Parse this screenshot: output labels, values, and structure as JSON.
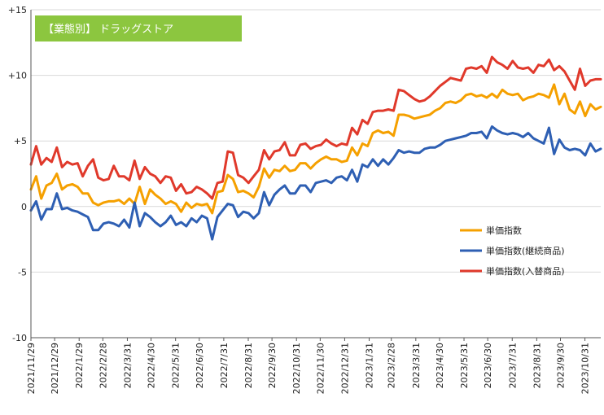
{
  "chart_data": {
    "type": "line",
    "title": "【業態別】 ドラッグストア",
    "title_bg_color": "#8cc63f",
    "xlabel": "",
    "ylabel": "",
    "ylim": [
      -10,
      15
    ],
    "yticks": [
      -10,
      -5,
      0,
      5,
      10,
      15
    ],
    "ytick_labels": [
      "-10",
      "-5",
      "0",
      "+5",
      "+10",
      "+15"
    ],
    "grid": true,
    "legend_position": "right-middle",
    "x_start": "2021-11-29",
    "x_end": "2023-11-20",
    "x_tick_labels": [
      "2021/11/29",
      "2021/12/29",
      "2022/1/29",
      "2022/2/28",
      "2022/3/31",
      "2022/4/30",
      "2022/5/31",
      "2022/6/30",
      "2022/7/31",
      "2022/8/31",
      "2022/9/30",
      "2022/10/31",
      "2022/11/30",
      "2022/12/31",
      "2023/1/31",
      "2023/2/28",
      "2023/3/31",
      "2023/4/30",
      "2023/5/31",
      "2023/6/30",
      "2023/7/31",
      "2023/8/31",
      "2023/9/30",
      "2023/10/31"
    ],
    "series": [
      {
        "name": "単価指数",
        "color": "#f5a000",
        "values": [
          1.3,
          2.3,
          0.6,
          1.6,
          1.8,
          2.5,
          1.3,
          1.6,
          1.7,
          1.5,
          1.0,
          1.0,
          0.3,
          0.1,
          0.3,
          0.4,
          0.4,
          0.5,
          0.2,
          0.6,
          0.2,
          1.5,
          0.2,
          1.3,
          0.9,
          0.6,
          0.2,
          0.4,
          0.2,
          -0.4,
          0.3,
          -0.1,
          0.2,
          0.1,
          0.2,
          -0.5,
          1.1,
          1.2,
          2.4,
          2.1,
          1.1,
          1.2,
          1.0,
          0.7,
          1.5,
          2.9,
          2.2,
          2.8,
          2.7,
          3.1,
          2.7,
          2.8,
          3.3,
          3.3,
          2.9,
          3.3,
          3.6,
          3.8,
          3.6,
          3.6,
          3.4,
          3.5,
          4.5,
          3.9,
          4.8,
          4.6,
          5.6,
          5.8,
          5.6,
          5.7,
          5.4,
          7.0,
          7.0,
          6.9,
          6.7,
          6.8,
          6.9,
          7.0,
          7.3,
          7.5,
          7.9,
          8.0,
          7.9,
          8.1,
          8.5,
          8.6,
          8.4,
          8.5,
          8.3,
          8.6,
          8.3,
          8.9,
          8.6,
          8.5,
          8.6,
          8.1,
          8.3,
          8.4,
          8.6,
          8.5,
          8.3,
          9.3,
          7.8,
          8.6,
          7.4,
          7.1,
          8.0,
          6.9,
          7.8,
          7.4,
          7.6
        ]
      },
      {
        "name": "単価指数(継続商品)",
        "color": "#2e5fb3",
        "values": [
          -0.3,
          0.4,
          -1.0,
          -0.2,
          -0.2,
          1.0,
          -0.2,
          -0.1,
          -0.3,
          -0.4,
          -0.6,
          -0.8,
          -1.8,
          -1.8,
          -1.3,
          -1.2,
          -1.3,
          -1.5,
          -1.0,
          -1.6,
          0.3,
          -1.5,
          -0.5,
          -0.8,
          -1.2,
          -1.5,
          -1.2,
          -0.7,
          -1.4,
          -1.2,
          -1.5,
          -0.9,
          -1.2,
          -0.7,
          -0.9,
          -2.5,
          -0.8,
          -0.3,
          0.2,
          0.1,
          -0.8,
          -0.4,
          -0.5,
          -0.9,
          -0.5,
          1.1,
          0.1,
          0.9,
          1.3,
          1.6,
          1.0,
          1.0,
          1.6,
          1.6,
          1.1,
          1.8,
          1.9,
          2.0,
          1.8,
          2.2,
          2.3,
          2.0,
          2.8,
          1.9,
          3.2,
          3.0,
          3.6,
          3.1,
          3.6,
          3.2,
          3.7,
          4.3,
          4.1,
          4.2,
          4.1,
          4.1,
          4.4,
          4.5,
          4.5,
          4.7,
          5.0,
          5.1,
          5.2,
          5.3,
          5.4,
          5.6,
          5.6,
          5.7,
          5.2,
          6.1,
          5.8,
          5.6,
          5.5,
          5.6,
          5.5,
          5.3,
          5.6,
          5.2,
          5.0,
          4.8,
          6.0,
          4.0,
          5.1,
          4.5,
          4.3,
          4.4,
          4.3,
          3.9,
          4.8,
          4.2,
          4.4
        ]
      },
      {
        "name": "単価指数(入替商品)",
        "color": "#e0392b",
        "values": [
          3.2,
          4.6,
          3.2,
          3.7,
          3.4,
          4.5,
          3.0,
          3.4,
          3.2,
          3.3,
          2.3,
          3.1,
          3.6,
          2.2,
          2.0,
          2.1,
          3.1,
          2.3,
          2.3,
          2.0,
          3.5,
          2.1,
          3.0,
          2.5,
          2.3,
          1.8,
          2.3,
          2.2,
          1.2,
          1.7,
          1.0,
          1.1,
          1.5,
          1.3,
          1.0,
          0.6,
          1.8,
          1.9,
          4.2,
          4.1,
          2.4,
          2.2,
          1.8,
          2.3,
          2.8,
          4.3,
          3.6,
          4.2,
          4.3,
          4.9,
          3.9,
          3.9,
          4.7,
          4.8,
          4.4,
          4.6,
          4.7,
          5.1,
          4.8,
          4.6,
          4.8,
          4.7,
          6.0,
          5.5,
          6.6,
          6.3,
          7.2,
          7.3,
          7.3,
          7.4,
          7.3,
          8.9,
          8.8,
          8.5,
          8.2,
          8.0,
          8.1,
          8.4,
          8.8,
          9.2,
          9.5,
          9.8,
          9.7,
          9.6,
          10.5,
          10.6,
          10.5,
          10.7,
          10.2,
          11.4,
          11.0,
          10.8,
          10.5,
          11.1,
          10.6,
          10.5,
          10.6,
          10.2,
          10.8,
          10.7,
          11.2,
          10.4,
          10.7,
          10.3,
          9.6,
          8.9,
          10.5,
          9.2,
          9.6,
          9.7,
          9.7
        ]
      }
    ]
  }
}
